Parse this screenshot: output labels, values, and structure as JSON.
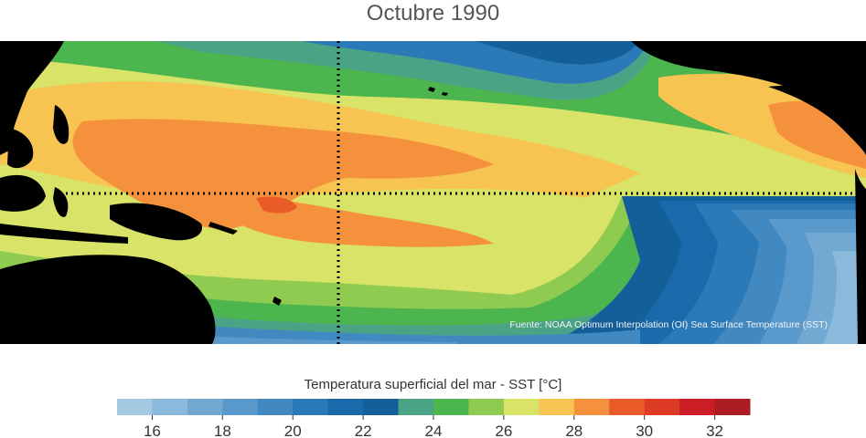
{
  "title": "Octubre 1990",
  "source": "Fuente: NOAA Optimum Interpolation (OI) Sea Surface Temperature (SST)",
  "legend": {
    "title": "Temperatura superficial del mar - SST  [°C]",
    "ticks": [
      16,
      18,
      20,
      22,
      24,
      26,
      28,
      30,
      32
    ],
    "bins": [
      {
        "from": 15,
        "to": 16,
        "color": "#a3c9e3"
      },
      {
        "from": 16,
        "to": 17,
        "color": "#8ab9dc"
      },
      {
        "from": 17,
        "to": 18,
        "color": "#72a9d3"
      },
      {
        "from": 18,
        "to": 19,
        "color": "#5a99cb"
      },
      {
        "from": 19,
        "to": 20,
        "color": "#4289c1"
      },
      {
        "from": 20,
        "to": 21,
        "color": "#2b79b7"
      },
      {
        "from": 21,
        "to": 22,
        "color": "#1a6aab"
      },
      {
        "from": 22,
        "to": 23,
        "color": "#145f9a"
      },
      {
        "from": 23,
        "to": 24,
        "color": "#4aa385"
      },
      {
        "from": 24,
        "to": 25,
        "color": "#4cb54e"
      },
      {
        "from": 25,
        "to": 26,
        "color": "#8fcb50"
      },
      {
        "from": 26,
        "to": 27,
        "color": "#d8e368"
      },
      {
        "from": 27,
        "to": 28,
        "color": "#f7c452"
      },
      {
        "from": 28,
        "to": 29,
        "color": "#f5913c"
      },
      {
        "from": 29,
        "to": 30,
        "color": "#ea5b2a"
      },
      {
        "from": 30,
        "to": 31,
        "color": "#dd3b26"
      },
      {
        "from": 31,
        "to": 32,
        "color": "#cc1c26"
      },
      {
        "from": 32,
        "to": 33,
        "color": "#ad1c25"
      }
    ]
  },
  "colors": {
    "land": "#000000",
    "guide_line": "#000000"
  }
}
